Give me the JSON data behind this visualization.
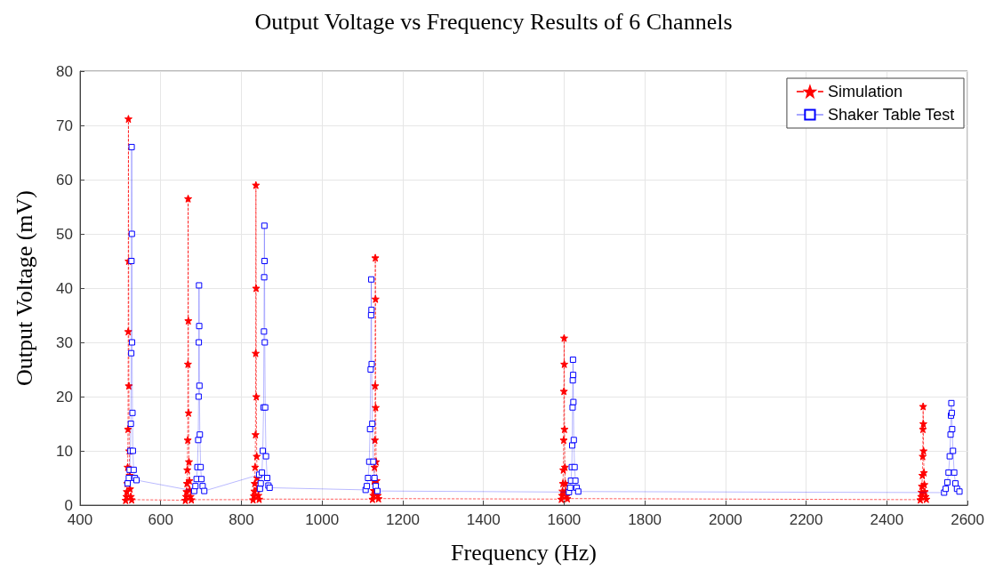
{
  "chart_data": {
    "type": "line",
    "title": "Output Voltage vs Frequency Results of 6 Channels",
    "xlabel": "Frequency (Hz)",
    "ylabel": "Output Voltage (mV)",
    "xlim": [
      400,
      2600
    ],
    "xticks": [
      400,
      600,
      800,
      1000,
      1200,
      1400,
      1600,
      1800,
      2000,
      2200,
      2400,
      2600
    ],
    "ylim": [
      0,
      80
    ],
    "yticks": [
      0,
      10,
      20,
      30,
      40,
      50,
      60,
      70,
      80
    ],
    "grid": true,
    "legend": "top right",
    "series": [
      {
        "name": "Simulation",
        "color": "#ff0000",
        "marker": "star",
        "line_style": "dashed",
        "x": [
          513,
          515,
          516,
          517,
          518,
          519,
          519.5,
          520,
          520.5,
          521,
          522,
          523,
          524,
          526,
          528,
          661,
          663,
          664,
          665,
          666,
          667,
          667.5,
          668,
          668.5,
          669,
          670,
          671,
          672,
          674,
          676,
          829,
          831,
          832,
          833,
          834,
          835,
          835.5,
          836,
          836.5,
          837,
          838,
          839,
          840,
          842,
          844,
          1125,
          1127,
          1128,
          1129,
          1130,
          1131,
          1131.5,
          1132,
          1132.5,
          1133,
          1134,
          1135,
          1136,
          1138,
          1140,
          1593,
          1595,
          1596,
          1597,
          1598,
          1599,
          1599.5,
          1600,
          1600.5,
          1601,
          1602,
          1603,
          1604,
          1606,
          1608,
          2483,
          2485,
          2486,
          2487,
          2488,
          2489,
          2489.5,
          2490,
          2490.5,
          2491,
          2492,
          2493,
          2494,
          2496,
          2498
        ],
        "values": [
          0.9,
          1.6,
          2.5,
          4,
          7,
          14,
          32,
          71.2,
          45,
          22,
          10,
          5.5,
          3,
          1.6,
          1.0,
          0.9,
          1.6,
          2.5,
          4,
          6.5,
          12,
          26,
          56.5,
          34,
          17,
          8,
          4.5,
          2.8,
          1.6,
          1.0,
          1.0,
          1.7,
          2.6,
          4,
          7,
          13,
          28,
          59,
          40,
          20,
          9,
          5,
          3,
          1.8,
          1.1,
          1.1,
          1.8,
          2.7,
          4.5,
          7,
          12,
          22,
          45.6,
          38,
          18,
          8,
          4.5,
          2.8,
          1.8,
          1.2,
          1.1,
          1.8,
          2.6,
          4,
          6.5,
          12,
          21,
          30.8,
          26,
          14,
          7,
          4,
          2.6,
          1.7,
          1.2,
          1.0,
          1.6,
          2.4,
          3.5,
          5.5,
          9,
          14,
          18.2,
          15,
          10,
          6,
          3.8,
          2.5,
          1.6,
          1.1
        ]
      },
      {
        "name": "Shaker Table Test",
        "color": "#0000ff",
        "marker": "square",
        "line_style": "solid",
        "x": [
          518,
          521,
          523,
          525,
          526,
          527,
          527.5,
          528,
          528.5,
          529,
          530,
          531,
          533,
          536,
          540,
          683,
          686,
          689,
          691,
          693,
          694,
          694.5,
          695,
          695.5,
          696,
          697,
          699,
          701,
          704,
          708,
          844,
          846,
          848,
          851,
          853,
          855,
          856,
          856.5,
          857,
          857.5,
          858,
          859,
          861,
          864,
          867,
          870,
          1108,
          1111,
          1114,
          1117,
          1119,
          1120.5,
          1121.5,
          1122,
          1122.5,
          1123,
          1124.5,
          1127,
          1130,
          1133,
          1137,
          1612,
          1615,
          1617,
          1619,
          1620,
          1621,
          1621.5,
          1622,
          1622.5,
          1623,
          1624,
          1626,
          1628,
          1631,
          1635,
          2542,
          2546,
          2550,
          2553,
          2556,
          2558,
          2559,
          2560,
          2561,
          2562,
          2564,
          2567,
          2570,
          2574,
          2580
        ],
        "values": [
          4.0,
          5,
          6.5,
          10,
          15,
          28,
          45,
          66,
          50,
          30,
          17,
          10,
          6.5,
          5,
          4.6,
          2.6,
          3.5,
          4.8,
          7,
          12,
          20,
          30,
          40.5,
          33,
          22,
          13,
          7,
          4.8,
          3.5,
          2.6,
          5.6,
          3.0,
          4,
          6,
          10,
          18,
          32,
          42,
          51.5,
          45,
          30,
          18,
          9,
          5,
          3.6,
          3.2,
          2.8,
          3.5,
          5,
          8,
          14,
          25,
          35,
          41.6,
          36,
          26,
          15,
          8,
          5,
          3.5,
          2.6,
          2.4,
          3.2,
          4.5,
          7,
          11,
          18,
          23,
          26.8,
          24,
          19,
          12,
          7,
          4.5,
          3.2,
          2.5,
          2.3,
          3,
          4.2,
          6,
          9,
          13,
          16.5,
          18.8,
          17,
          14,
          10,
          6,
          4,
          3,
          2.5
        ]
      }
    ]
  }
}
